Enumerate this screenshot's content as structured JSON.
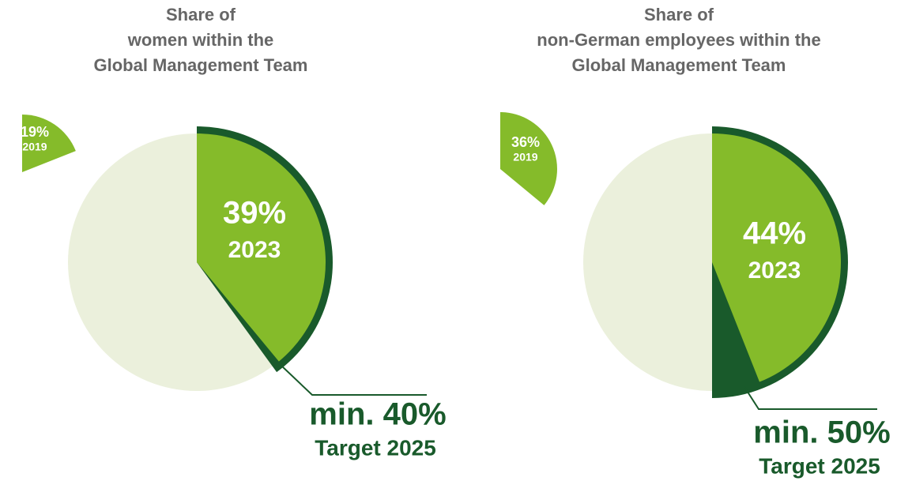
{
  "chart_data": [
    {
      "type": "pie",
      "title": [
        "Share of",
        "women within the",
        "Global Management Team"
      ],
      "categories": [
        "2019",
        "2023",
        "Target 2025"
      ],
      "values": [
        19,
        39,
        40
      ],
      "value_labels": [
        "19%",
        "39%",
        "min. 40%"
      ],
      "colors": [
        "#85bb2a",
        "#85bb2a",
        "#195a2b"
      ],
      "background_color": "#ebf0dc"
    },
    {
      "type": "pie",
      "title": [
        "Share of",
        "non-German employees within the",
        "Global Management Team"
      ],
      "categories": [
        "2019",
        "2023",
        "Target 2025"
      ],
      "values": [
        36,
        44,
        50
      ],
      "value_labels": [
        "36%",
        "44%",
        "min. 50%"
      ],
      "colors": [
        "#85bb2a",
        "#85bb2a",
        "#195a2b"
      ],
      "background_color": "#ebf0dc"
    }
  ]
}
